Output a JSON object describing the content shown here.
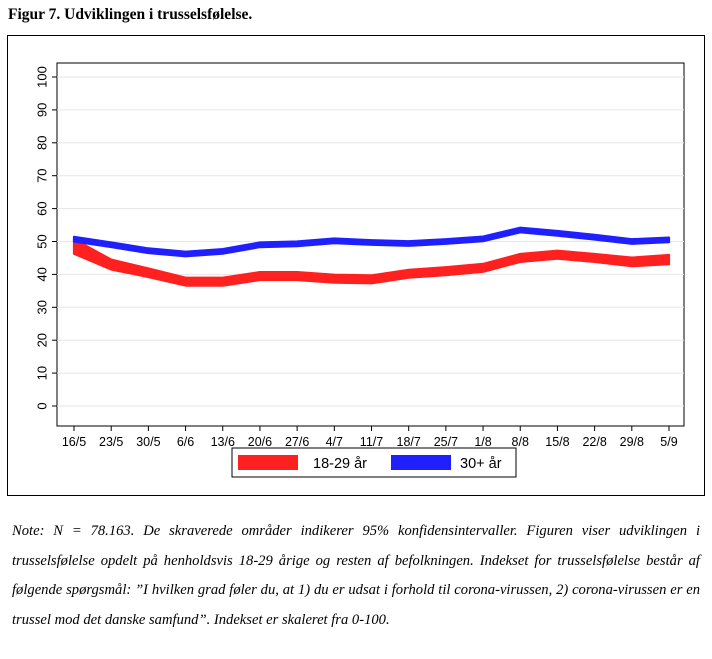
{
  "figure": {
    "title": "Figur 7. Udviklingen i trusselsfølelse.",
    "note": "Note: N = 78.163. De skraverede områder indikerer 95% konfidensintervaller. Figuren viser udviklingen i trusselsfølelse opdelt på henholdsvis 18-29 årige og resten af befolkningen. Indekset for trusselsfølelse består af følgende spørgsmål: ”I hvilken grad føler du, at 1) du er udsat i forhold til corona-virussen, 2) corona-virussen er en trussel mod det danske samfund”. Indekset er skaleret fra 0-100."
  },
  "chart_data": {
    "type": "line",
    "categories": [
      "16/5",
      "23/5",
      "30/5",
      "6/6",
      "13/6",
      "20/6",
      "27/6",
      "4/7",
      "11/7",
      "18/7",
      "25/7",
      "1/8",
      "8/8",
      "15/8",
      "22/8",
      "29/8",
      "5/9"
    ],
    "ylim": [
      0,
      100
    ],
    "yticks": [
      0,
      10,
      20,
      30,
      40,
      50,
      60,
      70,
      80,
      90,
      100
    ],
    "grid": true,
    "legend_position": "bottom",
    "confidence_band": "95%",
    "series": [
      {
        "name": "18-29 år",
        "color": "#ff2020",
        "values": [
          48.5,
          43,
          40.5,
          37.8,
          37.8,
          39.5,
          39.5,
          38.7,
          38.5,
          40.2,
          41,
          42,
          45,
          46,
          45,
          43.8,
          44.5
        ],
        "ci_halfwidth": [
          2.2,
          1.5,
          1.3,
          1.2,
          1.2,
          1.2,
          1.2,
          1.2,
          1.2,
          1.2,
          1.2,
          1.2,
          1.2,
          1.2,
          1.2,
          1.3,
          1.4
        ]
      },
      {
        "name": "30+ år",
        "color": "#2020ff",
        "values": [
          50.7,
          49,
          47.2,
          46.2,
          47,
          49,
          49.3,
          50.2,
          49.7,
          49.4,
          50,
          50.8,
          53.5,
          52.5,
          51.3,
          50,
          50.5
        ],
        "ci_halfwidth": [
          0.7,
          0.7,
          0.7,
          0.7,
          0.7,
          0.7,
          0.7,
          0.7,
          0.7,
          0.7,
          0.7,
          0.7,
          0.7,
          0.7,
          0.7,
          0.7,
          0.7
        ]
      }
    ]
  }
}
